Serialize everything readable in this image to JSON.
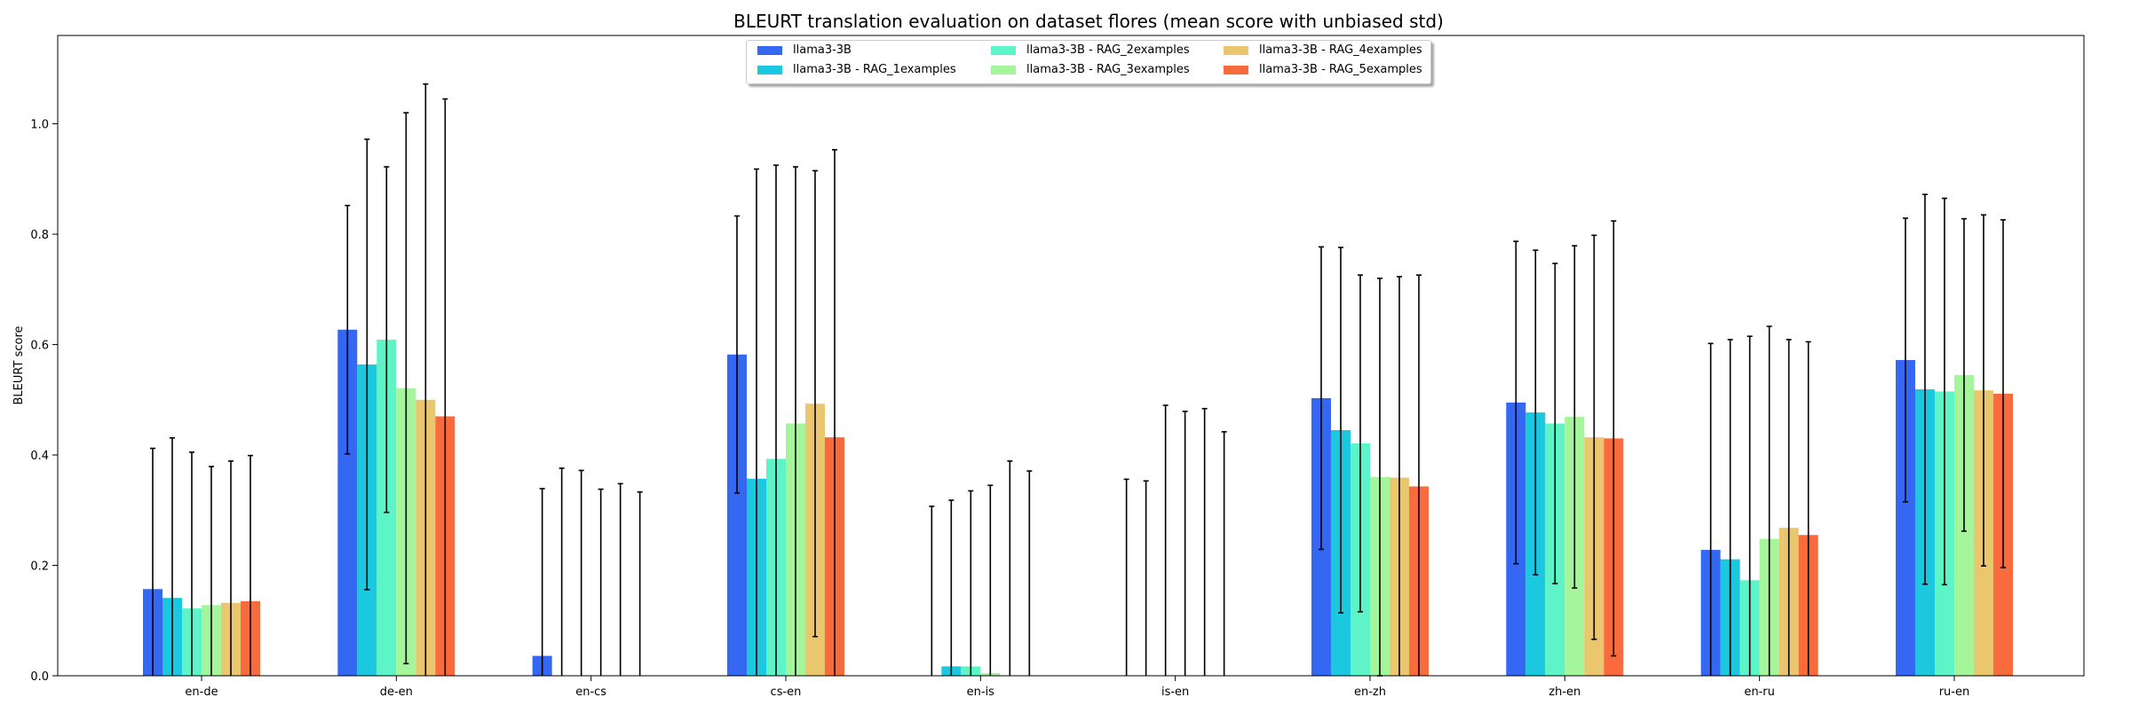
{
  "chart_data": {
    "type": "bar",
    "title": "BLEURT translation evaluation on dataset flores (mean score with unbiased std)",
    "xlabel": "",
    "ylabel": "BLEURT score",
    "ylim": [
      0,
      1.16
    ],
    "yticks": [
      "0.0",
      "0.2",
      "0.4",
      "0.6",
      "0.8",
      "1.0"
    ],
    "error_bars": true,
    "legend_position": "top-center",
    "categories": [
      "en-de",
      "de-en",
      "en-cs",
      "cs-en",
      "en-is",
      "is-en",
      "en-zh",
      "zh-en",
      "en-ru",
      "ru-en"
    ],
    "series": [
      {
        "name": "llama3-3B",
        "color": "#3468f3",
        "values": [
          0.157,
          0.627,
          0.036,
          0.582,
          0.0,
          0.0,
          0.503,
          0.495,
          0.228,
          0.572
        ],
        "errors": [
          0.255,
          0.225,
          0.303,
          0.251,
          0.307,
          0.356,
          0.274,
          0.292,
          0.374,
          0.257
        ]
      },
      {
        "name": "llama3-3B - RAG_1examples",
        "color": "#1bc8e0",
        "values": [
          0.141,
          0.564,
          0.0,
          0.357,
          0.017,
          0.0,
          0.445,
          0.477,
          0.211,
          0.519
        ],
        "errors": [
          0.29,
          0.408,
          0.376,
          0.561,
          0.301,
          0.353,
          0.331,
          0.294,
          0.398,
          0.353
        ]
      },
      {
        "name": "llama3-3B - RAG_2examples",
        "color": "#5df5c8",
        "values": [
          0.122,
          0.609,
          0.0,
          0.393,
          0.017,
          0.0,
          0.421,
          0.457,
          0.173,
          0.515
        ],
        "errors": [
          0.283,
          0.313,
          0.372,
          0.532,
          0.318,
          0.49,
          0.305,
          0.29,
          0.442,
          0.35
        ]
      },
      {
        "name": "llama3-3B - RAG_3examples",
        "color": "#a5f59a",
        "values": [
          0.128,
          0.521,
          0.0,
          0.457,
          0.005,
          0.0,
          0.36,
          0.469,
          0.248,
          0.545
        ],
        "errors": [
          0.251,
          0.499,
          0.338,
          0.465,
          0.34,
          0.479,
          0.36,
          0.31,
          0.385,
          0.283
        ]
      },
      {
        "name": "llama3-3B - RAG_4examples",
        "color": "#eac66e",
        "values": [
          0.132,
          0.5,
          0.0,
          0.493,
          0.0,
          0.0,
          0.359,
          0.432,
          0.268,
          0.517
        ],
        "errors": [
          0.257,
          0.572,
          0.348,
          0.422,
          0.389,
          0.484,
          0.364,
          0.366,
          0.341,
          0.318
        ]
      },
      {
        "name": "llama3-3B - RAG_5examples",
        "color": "#f96a3c",
        "values": [
          0.135,
          0.47,
          0.0,
          0.432,
          0.0,
          0.0,
          0.343,
          0.43,
          0.255,
          0.511
        ],
        "errors": [
          0.264,
          0.575,
          0.333,
          0.521,
          0.371,
          0.442,
          0.383,
          0.394,
          0.35,
          0.315
        ]
      }
    ]
  }
}
